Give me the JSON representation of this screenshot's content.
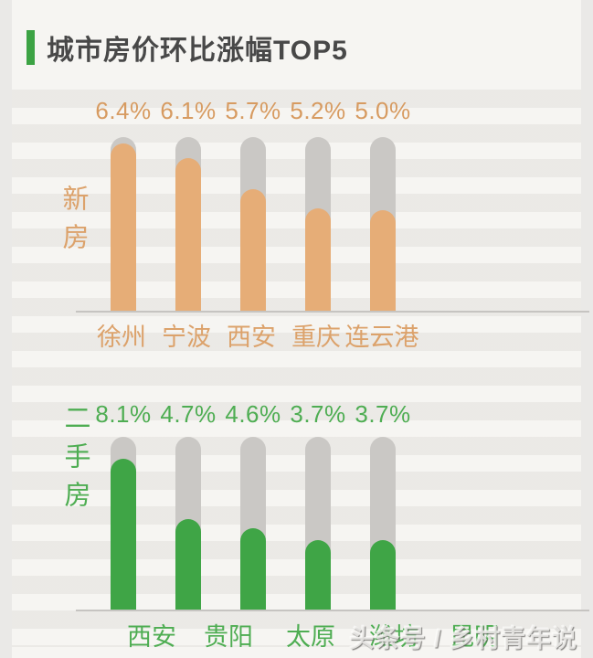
{
  "header": {
    "title": "城市房价环比涨幅TOP5"
  },
  "watermark": {
    "text": "头条号 / 乡村青年说"
  },
  "colors": {
    "accent_green": "#3CA344",
    "title_text": "#484848",
    "new_homes_bar": "#E6AD77",
    "new_homes_text": "#D79B61",
    "resale_bar": "#3FA546",
    "resale_text": "#4EAD52",
    "bar_track_gray": "#CAC8C5",
    "background": "#F6F5F2"
  },
  "chart_data": [
    {
      "type": "bar",
      "group_label": "新房",
      "unit": "%",
      "categories": [
        "徐州",
        "宁波",
        "西安",
        "重庆",
        "连云港"
      ],
      "values": [
        6.4,
        6.1,
        5.7,
        5.2,
        5.0
      ],
      "value_labels": [
        "6.4%",
        "6.1%",
        "5.7%",
        "5.2%",
        "5.0%"
      ],
      "fill_ratios": [
        0.963,
        0.879,
        0.702,
        0.592,
        0.581
      ],
      "bar_color": "#E6AD77",
      "track_color": "#CAC8C5",
      "grid": "horizontal-bands",
      "axis_labels_visible": false,
      "scale_note": "rounded capsule bars on gray tracks; fill heights as measured, not strictly linear"
    },
    {
      "type": "bar",
      "group_label": "二手房",
      "unit": "%",
      "categories": [
        "西安",
        "贵阳",
        "太原",
        "潍坊",
        "昆明"
      ],
      "values": [
        8.1,
        4.7,
        4.6,
        3.7,
        3.7
      ],
      "value_labels": [
        "8.1%",
        "4.7%",
        "4.6%",
        "3.7%",
        "3.7%"
      ],
      "fill_ratios": [
        0.874,
        0.526,
        0.474,
        0.405,
        0.405
      ],
      "bar_color": "#3FA546",
      "track_color": "#CAC8C5",
      "grid": "horizontal-bands",
      "axis_labels_visible": false,
      "category_note": "4th and 5th category labels partially covered by watermark"
    }
  ]
}
